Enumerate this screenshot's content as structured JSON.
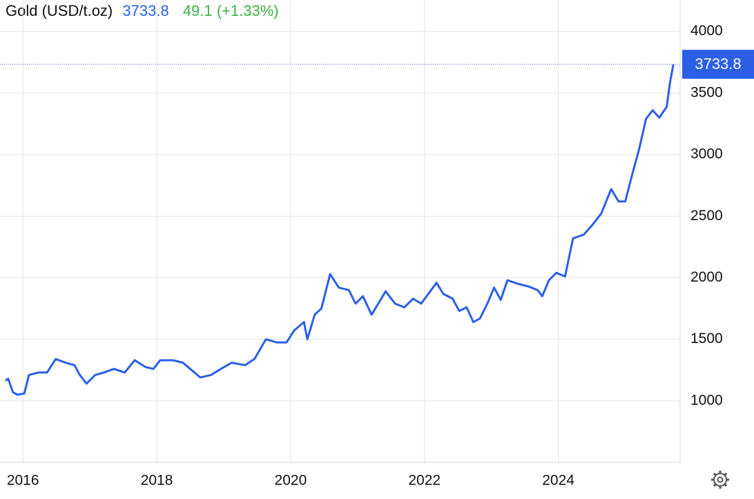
{
  "chart_data": {
    "type": "line",
    "title": "Gold (USD/t.oz)",
    "change": "49.1 (+1.33%)",
    "change_color": "#3cb043",
    "color": "#2a5fe6",
    "x": [
      2015.74,
      2015.78,
      2015.85,
      2015.92,
      2016.02,
      2016.09,
      2016.23,
      2016.36,
      2016.49,
      2016.64,
      2016.77,
      2016.85,
      2016.95,
      2017.08,
      2017.21,
      2017.36,
      2017.52,
      2017.67,
      2017.83,
      2017.95,
      2018.05,
      2018.24,
      2018.39,
      2018.5,
      2018.65,
      2018.81,
      2018.96,
      2019.12,
      2019.32,
      2019.46,
      2019.63,
      2019.79,
      2019.94,
      2020.05,
      2020.2,
      2020.25,
      2020.36,
      2020.46,
      2020.59,
      2020.72,
      2020.87,
      2020.97,
      2021.08,
      2021.21,
      2021.31,
      2021.42,
      2021.56,
      2021.7,
      2021.83,
      2021.95,
      2022.06,
      2022.18,
      2022.28,
      2022.42,
      2022.52,
      2022.63,
      2022.73,
      2022.83,
      2022.94,
      2023.04,
      2023.14,
      2023.24,
      2023.4,
      2023.55,
      2023.69,
      2023.76,
      2023.86,
      2023.97,
      2024.1,
      2024.22,
      2024.38,
      2024.51,
      2024.64,
      2024.79,
      2024.9,
      2025.0,
      2025.1,
      2025.21,
      2025.31,
      2025.41,
      2025.51,
      2025.62,
      2025.67,
      2025.72
    ],
    "values": [
      1165,
      1180,
      1070,
      1050,
      1060,
      1210,
      1230,
      1230,
      1340,
      1310,
      1290,
      1210,
      1140,
      1210,
      1230,
      1260,
      1230,
      1330,
      1275,
      1260,
      1330,
      1330,
      1310,
      1260,
      1190,
      1210,
      1260,
      1310,
      1290,
      1340,
      1500,
      1475,
      1475,
      1570,
      1640,
      1500,
      1700,
      1750,
      2030,
      1920,
      1900,
      1790,
      1850,
      1700,
      1790,
      1890,
      1790,
      1760,
      1830,
      1790,
      1870,
      1960,
      1870,
      1830,
      1730,
      1760,
      1640,
      1670,
      1790,
      1920,
      1820,
      1980,
      1950,
      1930,
      1900,
      1850,
      1980,
      2040,
      2010,
      2320,
      2350,
      2430,
      2520,
      2720,
      2620,
      2620,
      2830,
      3050,
      3290,
      3360,
      3300,
      3390,
      3590,
      3733.8
    ],
    "xlim": [
      2015.74,
      2025.82
    ],
    "xticks": [
      2016,
      2018,
      2020,
      2022,
      2024
    ],
    "ylim": [
      500,
      4200
    ],
    "yticks": [
      1000,
      1500,
      2000,
      2500,
      3000,
      3500,
      4000
    ],
    "grid": true
  }
}
